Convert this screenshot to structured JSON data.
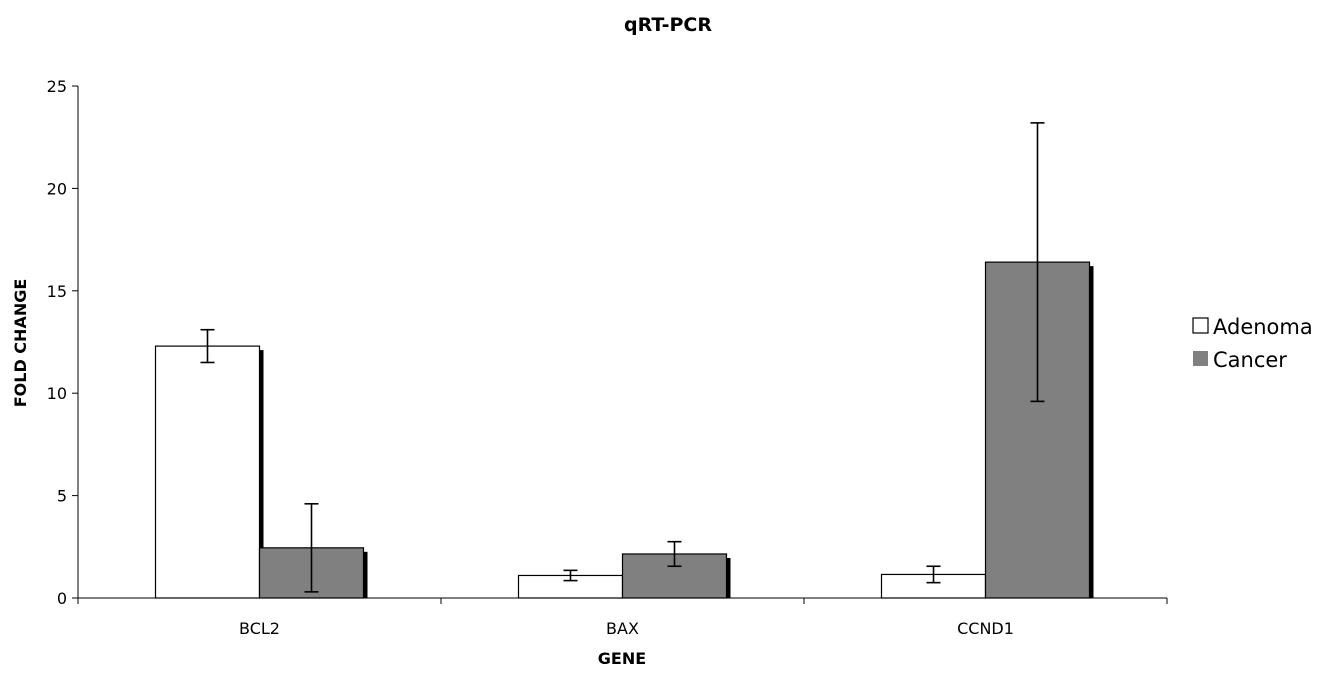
{
  "chart_data": {
    "type": "bar",
    "title": "qRT-PCR",
    "xlabel": "GENE",
    "ylabel": "FOLD CHANGE",
    "categories": [
      "BCL2",
      "BAX",
      "CCND1"
    ],
    "ylim": [
      0,
      25
    ],
    "yticks": [
      0,
      5,
      10,
      15,
      20,
      25
    ],
    "grid": false,
    "legend_position": "right",
    "series": [
      {
        "name": "Adenoma",
        "color": "#ffffff",
        "values": [
          12.3,
          1.1,
          1.15
        ],
        "error": [
          0.8,
          0.25,
          0.4
        ]
      },
      {
        "name": "Cancer",
        "color": "#808080",
        "values": [
          2.45,
          2.15,
          16.4
        ],
        "error": [
          2.15,
          0.6,
          6.8
        ]
      }
    ]
  }
}
